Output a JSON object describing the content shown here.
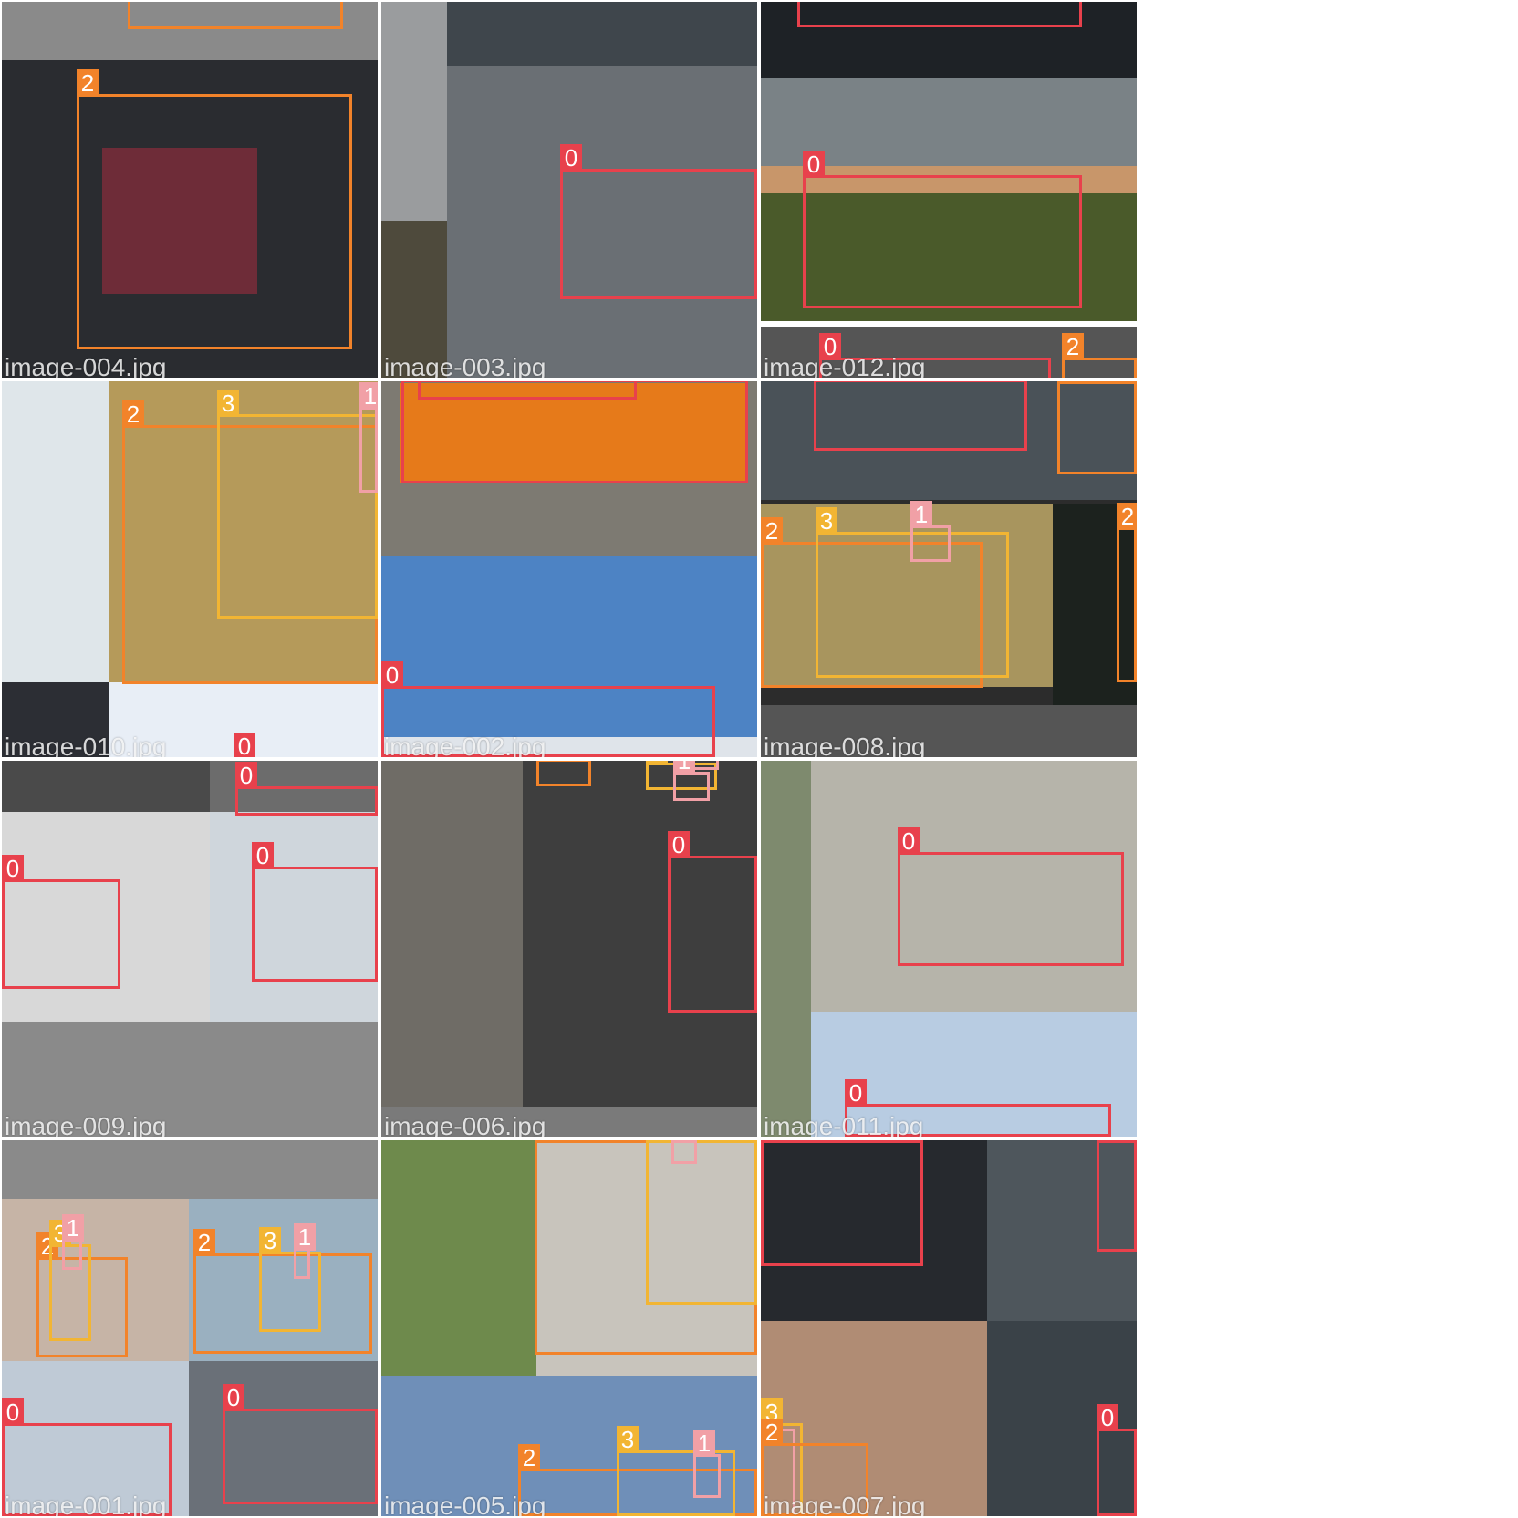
{
  "colors": {
    "class_0": "#e8414c",
    "class_1": "#f1a0a6",
    "class_2": "#f2832a",
    "class_3": "#f2b533",
    "background": "#ffffff"
  },
  "tiles": [
    {
      "label": "image-004.jpg",
      "pieces": [
        {
          "c": "#8a8a8a"
        },
        {
          "c": "#2a2c30"
        },
        {
          "c": "#6e2c38"
        }
      ],
      "boxes": [
        {
          "cls": "2"
        },
        {
          "cls": "2"
        }
      ]
    },
    {
      "label": "image-003.jpg",
      "pieces": [
        {
          "c": "#9a9c9e"
        },
        {
          "c": "#3f464c"
        },
        {
          "c": "#6a6f74"
        },
        {
          "c": "#4e4a3c"
        }
      ],
      "boxes": [
        {
          "cls": "0"
        }
      ]
    },
    {
      "label": "image-012.jpg",
      "pieces": [
        {
          "c": "#1e2226"
        },
        {
          "c": "#7a8286"
        },
        {
          "c": "#c8966a"
        },
        {
          "c": "#4a5a2a"
        },
        {
          "c": "#555555"
        }
      ],
      "boxes": [
        {
          "cls": "0"
        },
        {
          "cls": "0"
        },
        {
          "cls": "0"
        },
        {
          "cls": "2"
        }
      ]
    },
    {
      "label": "image-010.jpg",
      "pieces": [
        {
          "c": "#dfe6ea"
        },
        {
          "c": "#b59a5a"
        },
        {
          "c": "#2c2e34"
        },
        {
          "c": "#e8eef6"
        }
      ],
      "boxes": [
        {
          "cls": "2"
        },
        {
          "cls": "3"
        },
        {
          "cls": "1"
        },
        {
          "cls": "0"
        }
      ]
    },
    {
      "label": "image-002.jpg",
      "pieces": [
        {
          "c": "#7d7a72"
        },
        {
          "c": "#e67a1a"
        },
        {
          "c": "#4d83c4"
        },
        {
          "c": "#dfe4ea"
        }
      ],
      "boxes": [
        {
          "cls": "0"
        },
        {
          "cls": "0"
        },
        {
          "cls": "0"
        }
      ]
    },
    {
      "label": "image-008.jpg",
      "pieces": [
        {
          "c": "#4a5258"
        },
        {
          "c": "#2c2c2c"
        },
        {
          "c": "#a8955e"
        },
        {
          "c": "#1c221e"
        },
        {
          "c": "#555555"
        }
      ],
      "boxes": [
        {
          "cls": "0"
        },
        {
          "cls": "2"
        },
        {
          "cls": "2"
        },
        {
          "cls": "3"
        },
        {
          "cls": "1"
        },
        {
          "cls": "2"
        }
      ]
    },
    {
      "label": "image-009.jpg",
      "pieces": [
        {
          "c": "#4a4a4a"
        },
        {
          "c": "#d8d8d8"
        },
        {
          "c": "#6c6c6c"
        },
        {
          "c": "#cfd6dc"
        },
        {
          "c": "#8a8a8a"
        }
      ],
      "boxes": [
        {
          "cls": "0"
        },
        {
          "cls": "0"
        },
        {
          "cls": "0"
        }
      ]
    },
    {
      "label": "image-006.jpg",
      "pieces": [
        {
          "c": "#6f6c66"
        },
        {
          "c": "#3e3e3e"
        },
        {
          "c": "#7a7a7a"
        }
      ],
      "boxes": [
        {
          "cls": "0"
        },
        {
          "cls": "2"
        },
        {
          "cls": "3"
        },
        {
          "cls": "1"
        },
        {
          "cls": "1"
        }
      ]
    },
    {
      "label": "image-011.jpg",
      "pieces": [
        {
          "c": "#7e8a6e"
        },
        {
          "c": "#b6b4aa"
        },
        {
          "c": "#b8cce2"
        }
      ],
      "boxes": [
        {
          "cls": "0"
        },
        {
          "cls": "0"
        }
      ]
    },
    {
      "label": "image-001.jpg",
      "pieces": [
        {
          "c": "#8a8a8a"
        },
        {
          "c": "#c6b4a6"
        },
        {
          "c": "#9ab0c0"
        },
        {
          "c": "#bfcad6"
        },
        {
          "c": "#6a7078"
        }
      ],
      "boxes": [
        {
          "cls": "2"
        },
        {
          "cls": "3"
        },
        {
          "cls": "1"
        },
        {
          "cls": "2"
        },
        {
          "cls": "3"
        },
        {
          "cls": "1"
        },
        {
          "cls": "0"
        },
        {
          "cls": "0"
        }
      ]
    },
    {
      "label": "image-005.jpg",
      "pieces": [
        {
          "c": "#6e8a4c"
        },
        {
          "c": "#c8c4bc"
        },
        {
          "c": "#6f8fb8"
        }
      ],
      "boxes": [
        {
          "cls": "2"
        },
        {
          "cls": "3"
        },
        {
          "cls": "1"
        },
        {
          "cls": "2"
        },
        {
          "cls": "3"
        },
        {
          "cls": "1"
        }
      ]
    },
    {
      "label": "image-007.jpg",
      "pieces": [
        {
          "c": "#26292e"
        },
        {
          "c": "#4e565c"
        },
        {
          "c": "#b08c74"
        },
        {
          "c": "#3a4248"
        }
      ],
      "boxes": [
        {
          "cls": "0"
        },
        {
          "cls": "0"
        },
        {
          "cls": "1"
        },
        {
          "cls": "3"
        },
        {
          "cls": "2"
        },
        {
          "cls": "0"
        }
      ]
    }
  ]
}
